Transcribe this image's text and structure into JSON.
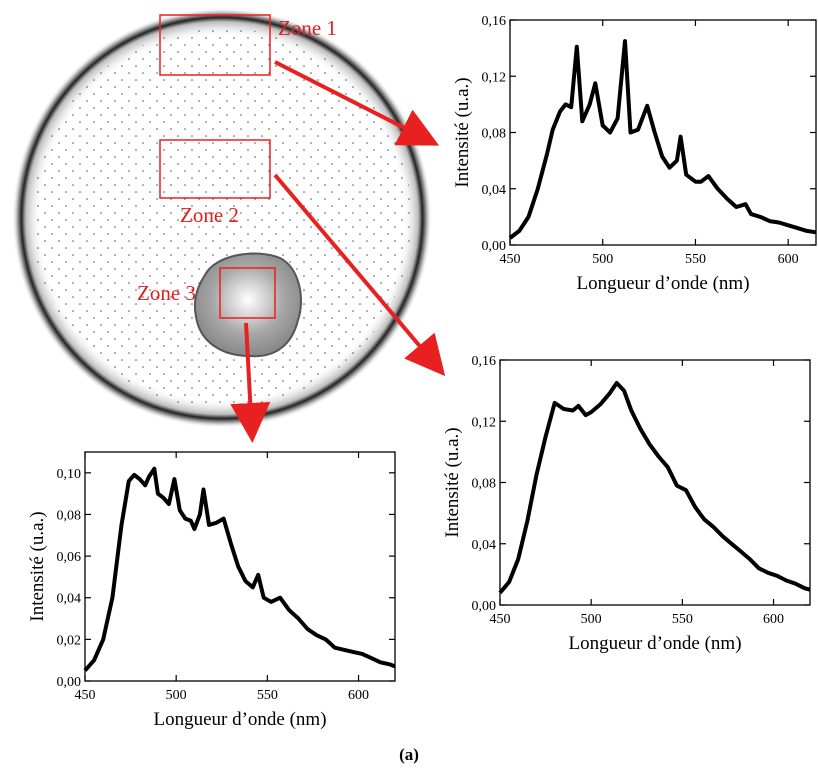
{
  "diagram": {
    "zones": [
      "Zone 1",
      "Zone 2",
      "Zone 3"
    ]
  },
  "caption": "(a)",
  "chart_data": [
    {
      "type": "line",
      "xlabel": "Longueur d’onde (nm)",
      "ylabel": "Intensité (u.a.)",
      "color": "#000000",
      "x": [
        450,
        455,
        460,
        465,
        470,
        473,
        477,
        480,
        483,
        486,
        489,
        493,
        496,
        500,
        504,
        508,
        512,
        515,
        519,
        524,
        528,
        532,
        536,
        540,
        542,
        545,
        550,
        553,
        557,
        562,
        567,
        572,
        577,
        580,
        585,
        590,
        595,
        600,
        605,
        610,
        615
      ],
      "values": [
        0.005,
        0.01,
        0.02,
        0.04,
        0.065,
        0.082,
        0.095,
        0.1,
        0.098,
        0.141,
        0.088,
        0.1,
        0.115,
        0.085,
        0.08,
        0.09,
        0.145,
        0.08,
        0.082,
        0.099,
        0.08,
        0.063,
        0.055,
        0.06,
        0.077,
        0.05,
        0.045,
        0.045,
        0.049,
        0.04,
        0.033,
        0.027,
        0.029,
        0.022,
        0.02,
        0.017,
        0.016,
        0.014,
        0.012,
        0.01,
        0.009
      ],
      "xlim": [
        450,
        615
      ],
      "ylim": [
        0,
        0.16
      ],
      "xticks": [
        450,
        500,
        550,
        600
      ],
      "yticks": [
        {
          "value": 0,
          "label": "0,00"
        },
        {
          "value": 0.04,
          "label": "0,04"
        },
        {
          "value": 0.08,
          "label": "0,08"
        },
        {
          "value": 0.12,
          "label": "0,12"
        },
        {
          "value": 0.16,
          "label": "0,16"
        }
      ]
    },
    {
      "type": "line",
      "xlabel": "Longueur d’onde (nm)",
      "ylabel": "Intensité (u.a.)",
      "color": "#000000",
      "x": [
        450,
        455,
        460,
        465,
        470,
        475,
        480,
        485,
        490,
        493,
        497,
        500,
        505,
        510,
        514,
        518,
        522,
        527,
        532,
        537,
        542,
        547,
        552,
        557,
        562,
        567,
        572,
        577,
        582,
        587,
        592,
        597,
        602,
        607,
        612,
        617,
        620
      ],
      "values": [
        0.008,
        0.015,
        0.03,
        0.055,
        0.085,
        0.11,
        0.132,
        0.128,
        0.127,
        0.13,
        0.124,
        0.126,
        0.131,
        0.138,
        0.145,
        0.14,
        0.127,
        0.115,
        0.105,
        0.097,
        0.09,
        0.078,
        0.075,
        0.064,
        0.056,
        0.051,
        0.045,
        0.04,
        0.035,
        0.03,
        0.024,
        0.021,
        0.019,
        0.016,
        0.014,
        0.011,
        0.01
      ],
      "xlim": [
        450,
        620
      ],
      "ylim": [
        0,
        0.16
      ],
      "xticks": [
        450,
        500,
        550,
        600
      ],
      "yticks": [
        {
          "value": 0,
          "label": "0,00"
        },
        {
          "value": 0.04,
          "label": "0,04"
        },
        {
          "value": 0.08,
          "label": "0,08"
        },
        {
          "value": 0.12,
          "label": "0,12"
        },
        {
          "value": 0.16,
          "label": "0,16"
        }
      ]
    },
    {
      "type": "line",
      "xlabel": "Longueur d’onde (nm)",
      "ylabel": "Intensité (u.a.)",
      "color": "#000000",
      "x": [
        450,
        455,
        460,
        465,
        470,
        474,
        477,
        480,
        483,
        485,
        488,
        490,
        493,
        496,
        499,
        502,
        505,
        508,
        510,
        513,
        515,
        518,
        522,
        526,
        530,
        534,
        538,
        542,
        545,
        548,
        552,
        557,
        562,
        567,
        572,
        577,
        582,
        587,
        592,
        597,
        602,
        607,
        612,
        617,
        620
      ],
      "values": [
        0.005,
        0.01,
        0.02,
        0.04,
        0.075,
        0.096,
        0.099,
        0.097,
        0.094,
        0.098,
        0.102,
        0.09,
        0.088,
        0.085,
        0.097,
        0.082,
        0.078,
        0.077,
        0.073,
        0.08,
        0.092,
        0.075,
        0.076,
        0.078,
        0.066,
        0.055,
        0.048,
        0.045,
        0.051,
        0.04,
        0.038,
        0.04,
        0.034,
        0.03,
        0.025,
        0.022,
        0.02,
        0.016,
        0.015,
        0.014,
        0.013,
        0.011,
        0.009,
        0.008,
        0.007
      ],
      "xlim": [
        450,
        620
      ],
      "ylim": [
        0,
        0.11
      ],
      "xticks": [
        450,
        500,
        550,
        600
      ],
      "yticks": [
        {
          "value": 0,
          "label": "0,00"
        },
        {
          "value": 0.02,
          "label": "0,02"
        },
        {
          "value": 0.04,
          "label": "0,04"
        },
        {
          "value": 0.06,
          "label": "0,06"
        },
        {
          "value": 0.08,
          "label": "0,08"
        },
        {
          "value": 0.1,
          "label": "0,10"
        }
      ]
    }
  ]
}
